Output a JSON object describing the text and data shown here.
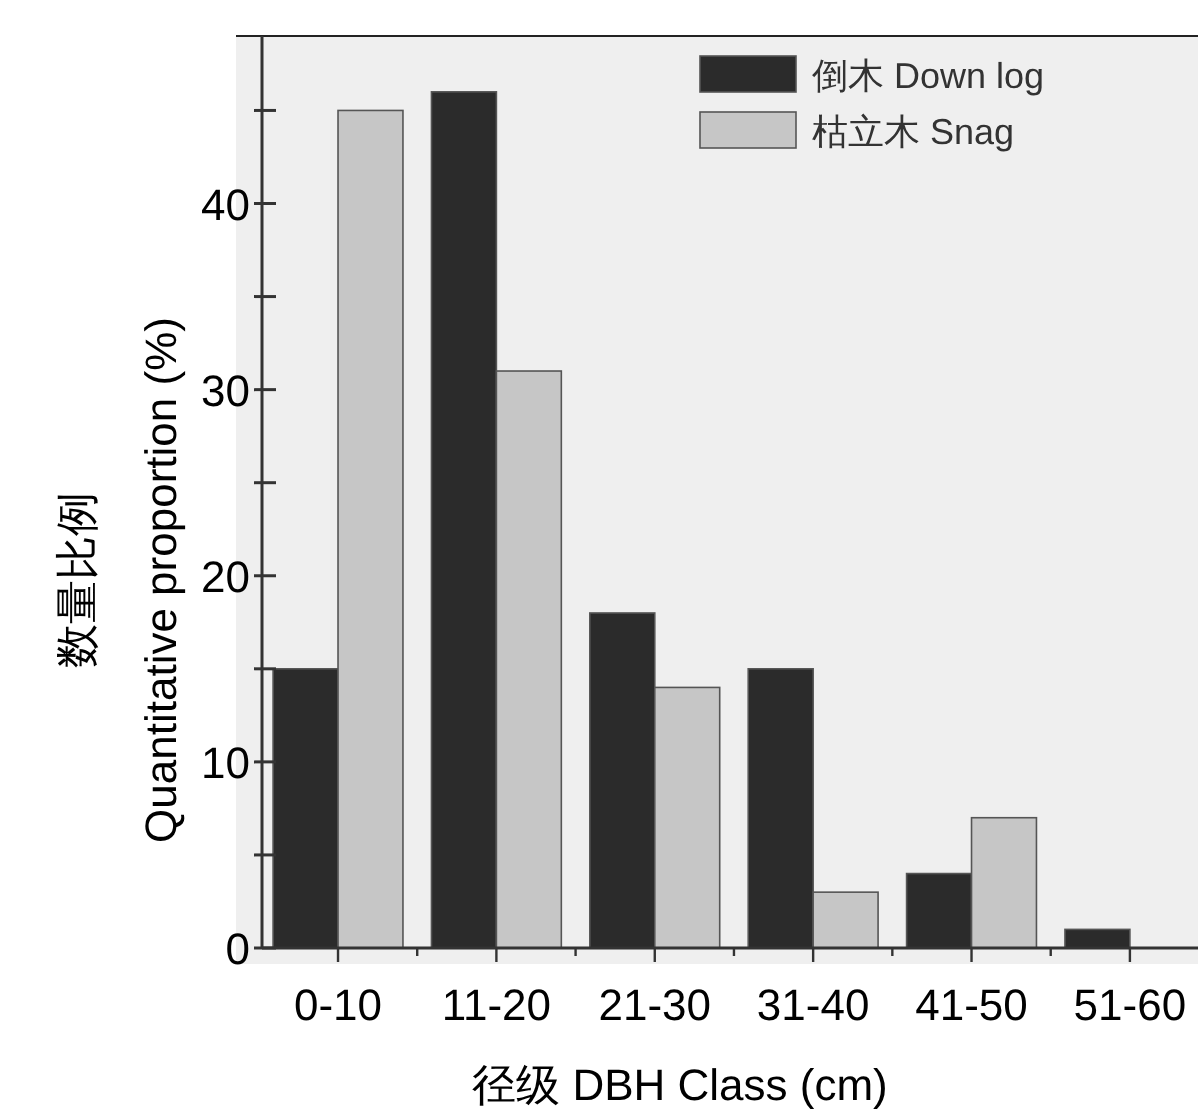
{
  "chart_data": {
    "type": "bar",
    "xlabel": "径级 DBH Class (cm)",
    "ylabel": "数量比例\nQuantitative proportion (%)",
    "categories": [
      "0-10",
      "11-20",
      "21-30",
      "31-40",
      "41-50",
      "51-60"
    ],
    "series": [
      {
        "name": "倒木 Down log",
        "color": "#2b2b2b",
        "values": [
          15,
          46,
          18,
          15,
          4,
          1
        ]
      },
      {
        "name": "枯立木 Snag",
        "color": "#c6c6c6",
        "values": [
          45,
          31,
          14,
          3,
          7,
          0
        ]
      }
    ],
    "ylim": [
      0,
      49
    ],
    "yticks": [
      0,
      {
        "value": 5,
        "label": null
      },
      10,
      {
        "value": 15,
        "label": null
      },
      20,
      {
        "value": 25,
        "label": null
      },
      30,
      {
        "value": 35,
        "label": null
      },
      40,
      {
        "value": 45,
        "label": null
      }
    ],
    "legend": "top right"
  }
}
